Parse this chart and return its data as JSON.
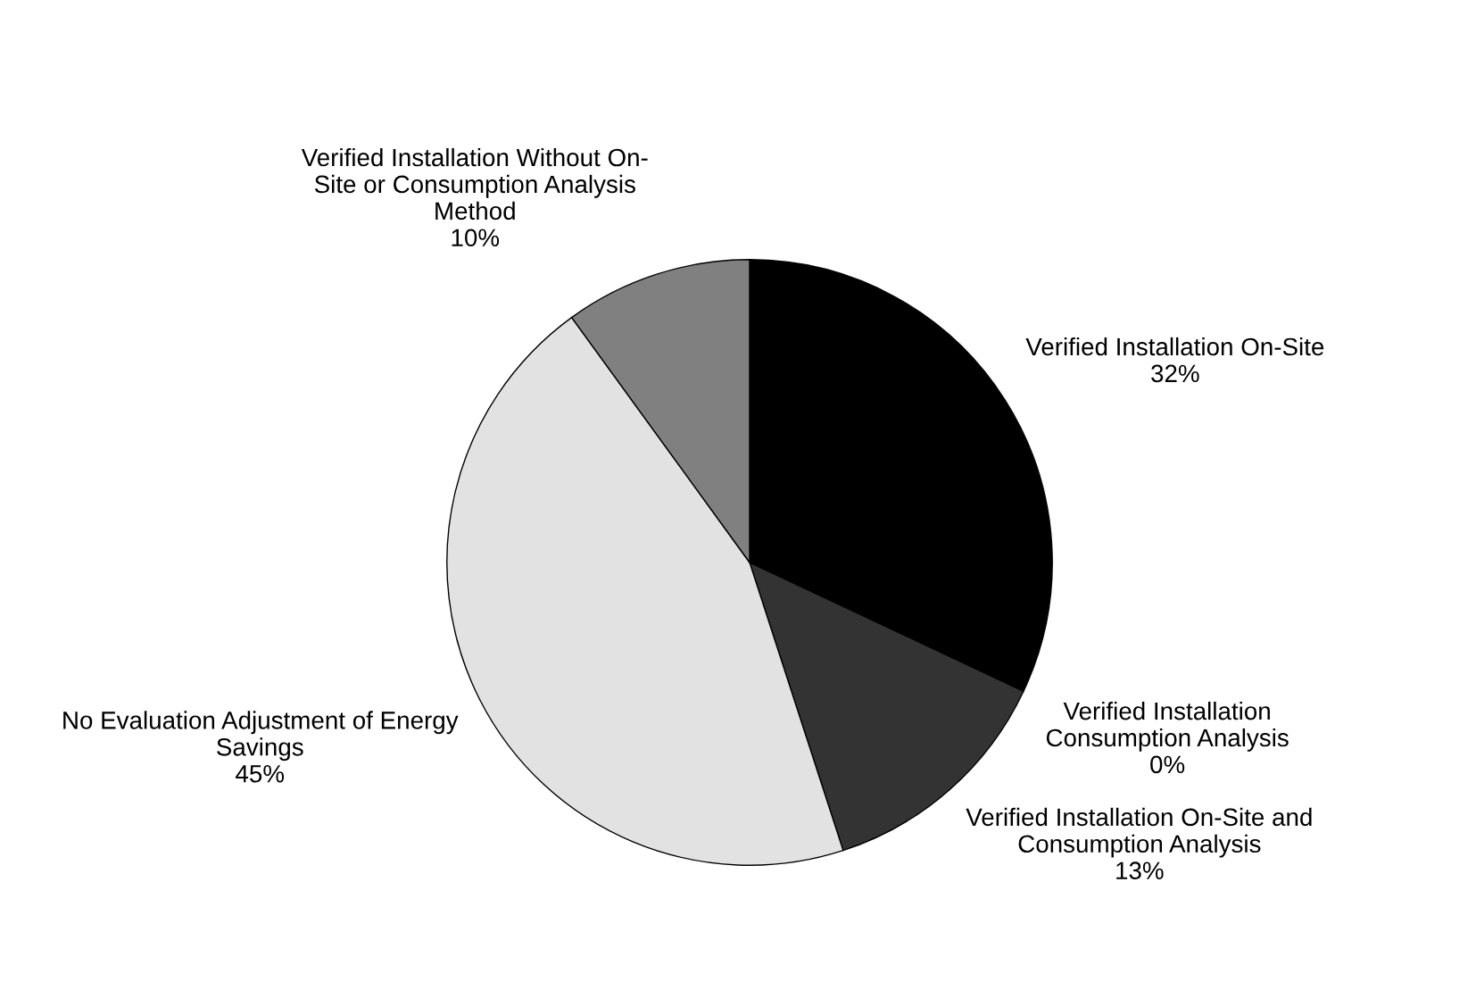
{
  "chart_data": {
    "type": "pie",
    "categories": [
      "Verified Installation On-Site",
      "Verified Installation Consumption Analysis",
      "Verified Installation On-Site and Consumption Analysis",
      "No Evaluation Adjustment of Energy Savings",
      "Verified Installation Without On-Site or Consumption Analysis Method"
    ],
    "values": [
      32,
      0,
      13,
      45,
      10
    ],
    "value_labels": [
      "32%",
      "0%",
      "13%",
      "45%",
      "10%"
    ],
    "colors": [
      "#000000",
      "#ffffff",
      "#333333",
      "#e2e2e2",
      "#808080"
    ],
    "legend": false
  }
}
